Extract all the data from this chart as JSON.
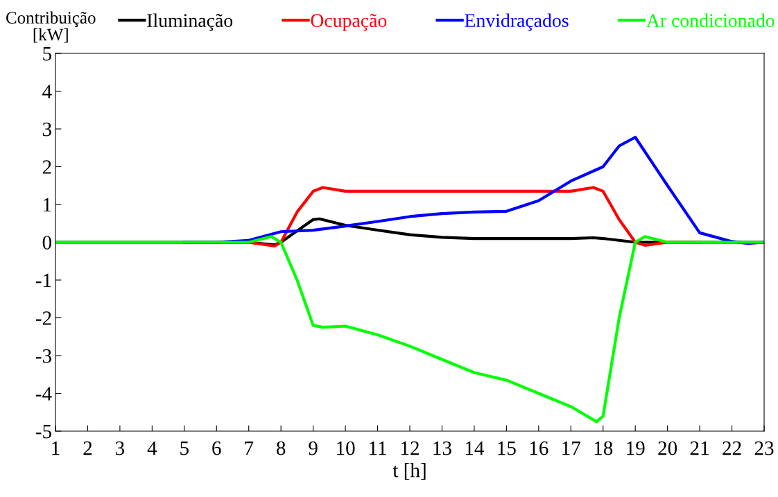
{
  "chart_data": {
    "type": "line",
    "xlabel": "t [h]",
    "ylabel": "Contribuição\n[kW]",
    "xlim": [
      1,
      23
    ],
    "xticks": [
      1,
      2,
      3,
      4,
      5,
      6,
      7,
      8,
      9,
      10,
      11,
      12,
      13,
      14,
      15,
      16,
      17,
      18,
      19,
      20,
      21,
      22,
      23
    ],
    "ylim": [
      -5,
      5
    ],
    "yticks": [
      -5,
      -4,
      -3,
      -2,
      -1,
      0,
      1,
      2,
      3,
      4,
      5
    ],
    "grid": false,
    "legend": "top",
    "marker": "none",
    "line_style": "solid",
    "series": [
      {
        "name": "Iluminação",
        "color": "#000000",
        "x": [
          1,
          2,
          3,
          4,
          5,
          6,
          7,
          7.8,
          8,
          8.5,
          9,
          9.2,
          10,
          11,
          12,
          13,
          14,
          15,
          16,
          17,
          17.7,
          18,
          19,
          20,
          21,
          22,
          23
        ],
        "values": [
          0,
          0,
          0,
          0,
          0,
          0,
          0,
          -0.07,
          0,
          0.3,
          0.6,
          0.62,
          0.45,
          0.32,
          0.2,
          0.13,
          0.1,
          0.1,
          0.1,
          0.1,
          0.12,
          0.1,
          0,
          0,
          0,
          0,
          0
        ]
      },
      {
        "name": "Ocupação",
        "color": "#ff0000",
        "x": [
          6,
          7,
          7.8,
          8,
          8.5,
          9,
          9.3,
          10,
          11,
          12,
          13,
          14,
          15,
          16,
          17,
          17.7,
          18,
          18.5,
          19,
          19.3,
          20,
          21
        ],
        "values": [
          0,
          0,
          -0.1,
          0,
          0.8,
          1.35,
          1.45,
          1.35,
          1.35,
          1.35,
          1.35,
          1.35,
          1.35,
          1.35,
          1.35,
          1.45,
          1.35,
          0.6,
          0,
          -0.08,
          0,
          0
        ]
      },
      {
        "name": "Envidraçados",
        "color": "#0000ff",
        "x": [
          5,
          6,
          7,
          8,
          9,
          10,
          11,
          12,
          13,
          14,
          15,
          16,
          17,
          18,
          18.5,
          19,
          20,
          21,
          22,
          22.5,
          23
        ],
        "values": [
          0,
          0,
          0.05,
          0.28,
          0.32,
          0.43,
          0.55,
          0.68,
          0.76,
          0.8,
          0.82,
          1.1,
          1.62,
          2.0,
          2.55,
          2.78,
          1.5,
          0.25,
          0.02,
          -0.03,
          0
        ]
      },
      {
        "name": "Ar condicionado",
        "color": "#00ff00",
        "x": [
          1,
          2,
          3,
          4,
          5,
          6,
          7,
          7.7,
          8,
          8.5,
          9,
          9.3,
          10,
          11,
          12,
          13,
          14,
          15,
          16,
          17,
          17.8,
          18,
          18.5,
          19,
          19.3,
          20,
          21,
          22,
          23
        ],
        "values": [
          0,
          0,
          0,
          0,
          0,
          0,
          0,
          0.15,
          0,
          -1.0,
          -2.2,
          -2.25,
          -2.22,
          -2.45,
          -2.75,
          -3.1,
          -3.45,
          -3.65,
          -4.0,
          -4.35,
          -4.75,
          -4.6,
          -2.0,
          0,
          0.15,
          0,
          0,
          0,
          0
        ]
      }
    ]
  }
}
